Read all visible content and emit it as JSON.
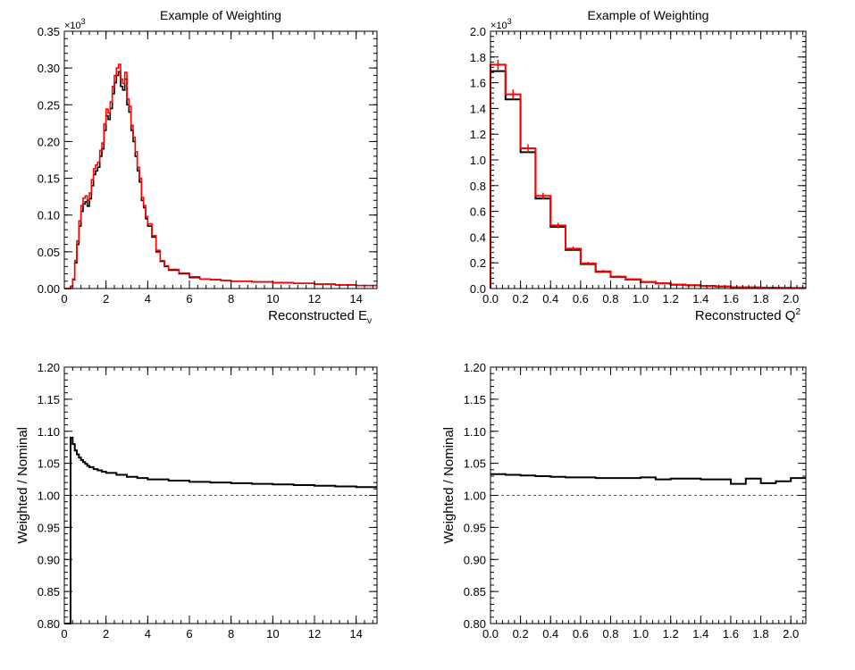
{
  "colors": {
    "nominal": "#000000",
    "weighted": "#ff0000",
    "reference": "#555555"
  },
  "chart_data": [
    {
      "panel": "top-left",
      "type": "line",
      "step": true,
      "title": "Example of Weighting",
      "xlabel": "Reconstructed E",
      "xlabel_sub": "ν",
      "ylabel": "",
      "exponent_main": "×10",
      "exponent_sup": "3",
      "xlim": [
        0,
        15
      ],
      "ylim": [
        0,
        0.35
      ],
      "xticks": [
        0,
        2,
        4,
        6,
        8,
        10,
        12,
        14
      ],
      "xtick_labels": [
        "0",
        "2",
        "4",
        "6",
        "8",
        "10",
        "12",
        "14"
      ],
      "yticks": [
        0,
        0.05,
        0.1,
        0.15,
        0.2,
        0.25,
        0.3,
        0.35
      ],
      "ytick_labels": [
        "0.00",
        "0.05",
        "0.10",
        "0.15",
        "0.20",
        "0.25",
        "0.30",
        "0.35"
      ],
      "series": [
        {
          "key": "nominal",
          "color": "#000000",
          "x": [
            0,
            0.3,
            0.4,
            0.5,
            0.6,
            0.7,
            0.8,
            0.9,
            1.0,
            1.1,
            1.2,
            1.3,
            1.4,
            1.5,
            1.6,
            1.7,
            1.8,
            1.9,
            2.0,
            2.1,
            2.2,
            2.3,
            2.4,
            2.5,
            2.6,
            2.7,
            2.8,
            2.9,
            3.0,
            3.1,
            3.2,
            3.3,
            3.4,
            3.5,
            3.6,
            3.7,
            3.8,
            3.9,
            4.0,
            4.2,
            4.4,
            4.6,
            4.8,
            5.0,
            5.5,
            6.0,
            6.5,
            7.0,
            7.5,
            8.0,
            9.0,
            10.0,
            11.0,
            12.0,
            13.0,
            14.0,
            15.0
          ],
          "y": [
            0,
            0.003,
            0.012,
            0.035,
            0.06,
            0.085,
            0.105,
            0.115,
            0.118,
            0.112,
            0.122,
            0.14,
            0.155,
            0.16,
            0.165,
            0.18,
            0.19,
            0.215,
            0.235,
            0.23,
            0.245,
            0.265,
            0.28,
            0.29,
            0.295,
            0.275,
            0.27,
            0.285,
            0.25,
            0.24,
            0.215,
            0.2,
            0.18,
            0.16,
            0.145,
            0.12,
            0.11,
            0.095,
            0.085,
            0.07,
            0.05,
            0.037,
            0.03,
            0.025,
            0.02,
            0.015,
            0.013,
            0.012,
            0.011,
            0.01,
            0.009,
            0.008,
            0.007,
            0.006,
            0.005,
            0.004,
            0.004
          ]
        },
        {
          "key": "weighted",
          "color": "#ff0000",
          "x": [
            0,
            0.3,
            0.4,
            0.5,
            0.6,
            0.7,
            0.8,
            0.9,
            1.0,
            1.1,
            1.2,
            1.3,
            1.4,
            1.5,
            1.6,
            1.7,
            1.8,
            1.9,
            2.0,
            2.1,
            2.2,
            2.3,
            2.4,
            2.5,
            2.6,
            2.7,
            2.8,
            2.9,
            3.0,
            3.1,
            3.2,
            3.3,
            3.4,
            3.5,
            3.6,
            3.7,
            3.8,
            3.9,
            4.0,
            4.2,
            4.4,
            4.6,
            4.8,
            5.0,
            5.5,
            6.0,
            6.5,
            7.0,
            7.5,
            8.0,
            9.0,
            10.0,
            11.0,
            12.0,
            13.0,
            14.0,
            15.0
          ],
          "y": [
            0,
            0.003,
            0.013,
            0.038,
            0.065,
            0.092,
            0.113,
            0.123,
            0.126,
            0.12,
            0.13,
            0.148,
            0.163,
            0.168,
            0.172,
            0.188,
            0.198,
            0.224,
            0.244,
            0.239,
            0.254,
            0.275,
            0.29,
            0.3,
            0.305,
            0.285,
            0.279,
            0.294,
            0.258,
            0.248,
            0.222,
            0.206,
            0.186,
            0.165,
            0.15,
            0.124,
            0.113,
            0.098,
            0.088,
            0.072,
            0.052,
            0.038,
            0.031,
            0.026,
            0.021,
            0.016,
            0.013,
            0.012,
            0.011,
            0.01,
            0.009,
            0.008,
            0.007,
            0.006,
            0.005,
            0.004,
            0.004
          ]
        }
      ]
    },
    {
      "panel": "top-right",
      "type": "bar",
      "step": true,
      "title": "Example of Weighting",
      "xlabel": "Reconstructed Q",
      "xlabel_sup": "2",
      "ylabel": "",
      "exponent_main": "×10",
      "exponent_sup": "3",
      "xlim": [
        0,
        2.1
      ],
      "ylim": [
        0,
        2.0
      ],
      "xticks": [
        0,
        0.2,
        0.4,
        0.6,
        0.8,
        1.0,
        1.2,
        1.4,
        1.6,
        1.8,
        2.0
      ],
      "xtick_labels": [
        "0.0",
        "0.2",
        "0.4",
        "0.6",
        "0.8",
        "1.0",
        "1.2",
        "1.4",
        "1.6",
        "1.8",
        "2.0"
      ],
      "yticks": [
        0,
        0.2,
        0.4,
        0.6,
        0.8,
        1.0,
        1.2,
        1.4,
        1.6,
        1.8,
        2.0
      ],
      "ytick_labels": [
        "0.0",
        "0.2",
        "0.4",
        "0.6",
        "0.8",
        "1.0",
        "1.2",
        "1.4",
        "1.6",
        "1.8",
        "2.0"
      ],
      "bin_edges": [
        0,
        0.1,
        0.2,
        0.3,
        0.4,
        0.5,
        0.6,
        0.7,
        0.8,
        0.9,
        1.0,
        1.1,
        1.2,
        1.3,
        1.4,
        1.5,
        1.6,
        1.7,
        1.8,
        1.9,
        2.0,
        2.1
      ],
      "series": [
        {
          "key": "nominal",
          "color": "#000000",
          "values": [
            1.69,
            1.47,
            1.06,
            0.7,
            0.48,
            0.3,
            0.19,
            0.13,
            0.09,
            0.07,
            0.05,
            0.04,
            0.03,
            0.025,
            0.02,
            0.015,
            0.01,
            0.008,
            0.006,
            0.005,
            0.004
          ]
        },
        {
          "key": "weighted",
          "color": "#ff0000",
          "error_markers": true,
          "values": [
            1.74,
            1.51,
            1.09,
            0.72,
            0.49,
            0.31,
            0.195,
            0.134,
            0.093,
            0.072,
            0.052,
            0.041,
            0.031,
            0.026,
            0.021,
            0.016,
            0.01,
            0.008,
            0.006,
            0.005,
            0.004
          ]
        }
      ]
    },
    {
      "panel": "bottom-left",
      "type": "line",
      "step": true,
      "title": "",
      "xlabel": "",
      "ylabel": "Weighted / Nominal",
      "xlim": [
        0,
        15
      ],
      "ylim": [
        0.8,
        1.2
      ],
      "reference_line": 1.0,
      "xticks": [
        0,
        2,
        4,
        6,
        8,
        10,
        12,
        14
      ],
      "xtick_labels": [
        "0",
        "2",
        "4",
        "6",
        "8",
        "10",
        "12",
        "14"
      ],
      "yticks": [
        0.8,
        0.85,
        0.9,
        0.95,
        1.0,
        1.05,
        1.1,
        1.15,
        1.2
      ],
      "ytick_labels": [
        "0.80",
        "0.85",
        "0.90",
        "0.95",
        "1.00",
        "1.05",
        "1.10",
        "1.15",
        "1.20"
      ],
      "series": [
        {
          "key": "ratio",
          "color": "#000000",
          "x": [
            0,
            0.3,
            0.4,
            0.5,
            0.6,
            0.7,
            0.8,
            0.9,
            1.0,
            1.1,
            1.2,
            1.4,
            1.6,
            1.8,
            2.0,
            2.5,
            3.0,
            3.5,
            4.0,
            5.0,
            6.0,
            7.0,
            8.0,
            9.0,
            10.0,
            11.0,
            12.0,
            13.0,
            14.0,
            15.0
          ],
          "y": [
            0.8,
            1.09,
            1.08,
            1.07,
            1.064,
            1.059,
            1.055,
            1.052,
            1.049,
            1.046,
            1.044,
            1.041,
            1.039,
            1.037,
            1.035,
            1.032,
            1.029,
            1.027,
            1.025,
            1.023,
            1.021,
            1.02,
            1.019,
            1.018,
            1.017,
            1.016,
            1.015,
            1.014,
            1.013,
            1.013
          ]
        }
      ]
    },
    {
      "panel": "bottom-right",
      "type": "line",
      "step": true,
      "title": "",
      "xlabel": "",
      "ylabel": "Weighted / Nominal",
      "xlim": [
        0,
        2.1
      ],
      "ylim": [
        0.8,
        1.2
      ],
      "reference_line": 1.0,
      "xticks": [
        0,
        0.2,
        0.4,
        0.6,
        0.8,
        1.0,
        1.2,
        1.4,
        1.6,
        1.8,
        2.0
      ],
      "xtick_labels": [
        "0.0",
        "0.2",
        "0.4",
        "0.6",
        "0.8",
        "1.0",
        "1.2",
        "1.4",
        "1.6",
        "1.8",
        "2.0"
      ],
      "yticks": [
        0.8,
        0.85,
        0.9,
        0.95,
        1.0,
        1.05,
        1.1,
        1.15,
        1.2
      ],
      "ytick_labels": [
        "0.80",
        "0.85",
        "0.90",
        "0.95",
        "1.00",
        "1.05",
        "1.10",
        "1.15",
        "1.20"
      ],
      "series": [
        {
          "key": "ratio",
          "color": "#000000",
          "x": [
            0,
            0.1,
            0.2,
            0.3,
            0.4,
            0.5,
            0.6,
            0.7,
            0.8,
            0.9,
            1.0,
            1.1,
            1.2,
            1.3,
            1.4,
            1.5,
            1.6,
            1.7,
            1.8,
            1.9,
            2.0,
            2.1
          ],
          "y": [
            1.033,
            1.032,
            1.031,
            1.03,
            1.029,
            1.028,
            1.028,
            1.027,
            1.027,
            1.027,
            1.028,
            1.025,
            1.026,
            1.026,
            1.025,
            1.025,
            1.018,
            1.026,
            1.019,
            1.022,
            1.027,
            1.027
          ]
        }
      ]
    }
  ]
}
